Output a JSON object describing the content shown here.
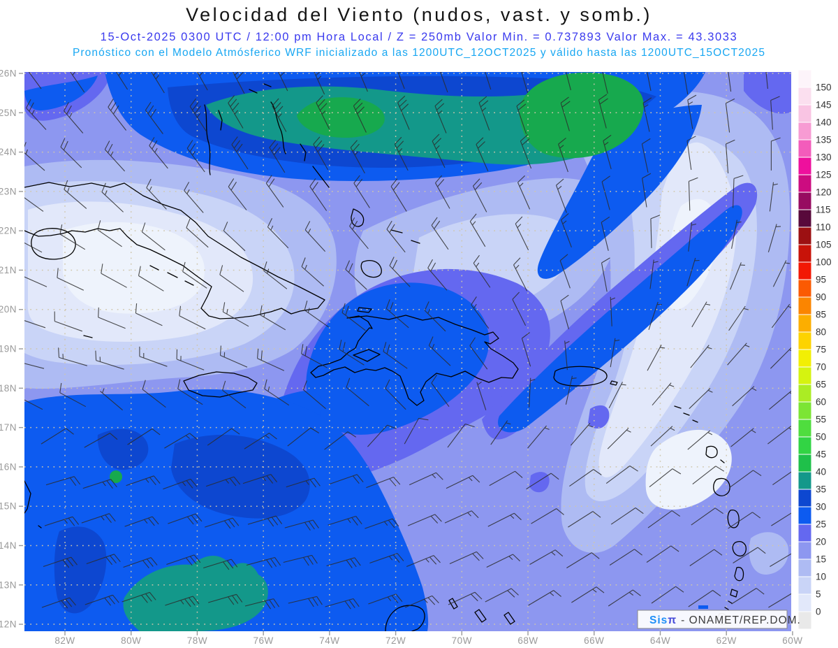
{
  "header": {
    "title": "Velocidad del Viento (nudos, vast. y somb.)",
    "datetime_line": "15-Oct-2025  0300 UTC / 12:00 pm Hora Local / Z = 250mb   Valor Min. = 0.737893   Valor Max. = 43.3033",
    "model_line": "Pronóstico con el Modelo Atmósferico WRF inicializado a las 1200UTC_12OCT2025 y válido hasta las  1200UTC_15OCT2025"
  },
  "colors": {
    "title": "#141414",
    "datetime": "#3a3aee",
    "model": "#18a7f2",
    "axis_label": "#999999",
    "grid_dots": "#cfc6ab",
    "coast": "#000000",
    "barb": "#2b2b2b",
    "colorbar_label": "#333333",
    "band_base": "#8d97f0",
    "band_light1": "#aebbf3",
    "band_light2": "#c9d4f7",
    "band_light3": "#e2e8fa",
    "band_light4": "#eef3fc",
    "band_peri": "#6468f0",
    "band_blue": "#0d5bf0",
    "band_deepblue": "#0d47d0",
    "band_teal": "#13988a",
    "band_green": "#17a94e",
    "attr_brand": "#1f8ff7",
    "attr_symbol": "#4348d8",
    "attr_text": "#3c3c3c"
  },
  "axes": {
    "lat_labels": [
      "26N",
      "25N",
      "24N",
      "23N",
      "22N",
      "21N",
      "20N",
      "19N",
      "18N",
      "17N",
      "16N",
      "15N",
      "14N",
      "13N",
      "12N"
    ],
    "lon_labels": [
      "82W",
      "80W",
      "78W",
      "76W",
      "74W",
      "72W",
      "70W",
      "68W",
      "66W",
      "64W",
      "62W",
      "60W"
    ]
  },
  "colorbar": {
    "labels": [
      "150",
      "145",
      "140",
      "135",
      "130",
      "125",
      "120",
      "115",
      "110",
      "105",
      "100",
      "95",
      "90",
      "85",
      "80",
      "75",
      "70",
      "65",
      "60",
      "55",
      "50",
      "45",
      "40",
      "35",
      "30",
      "25",
      "20",
      "15",
      "10",
      "5",
      "0"
    ],
    "cell_colors_top_to_bottom": [
      "#fdf4fa",
      "#fbdfef",
      "#f9c4e3",
      "#f79bd3",
      "#f35cbb",
      "#ee109d",
      "#cc0c80",
      "#970b61",
      "#58093b",
      "#9c1012",
      "#c81309",
      "#f21804",
      "#fb5a02",
      "#fb8500",
      "#fcae00",
      "#fdd300",
      "#f2ef04",
      "#d5f310",
      "#abec24",
      "#7ce534",
      "#4fdd3e",
      "#32d444",
      "#1fc04a",
      "#13988a",
      "#0d47d0",
      "#0d5bf0",
      "#6468f0",
      "#8d97f0",
      "#aebbf3",
      "#c9d4f7",
      "#e2e8fa",
      "#e9e9e9"
    ]
  },
  "attribution": {
    "brand": "Sis",
    "brand_symbol": "π",
    "text": "- ONAMET/REP.DOM."
  },
  "wind": {
    "cols": 7,
    "rows": 8,
    "grid": [
      [
        [
          325,
          28
        ],
        [
          330,
          38
        ],
        [
          335,
          40
        ],
        [
          340,
          36
        ],
        [
          345,
          30
        ],
        [
          350,
          20
        ],
        [
          355,
          14
        ]
      ],
      [
        [
          310,
          18
        ],
        [
          320,
          30
        ],
        [
          330,
          34
        ],
        [
          335,
          28
        ],
        [
          340,
          18
        ],
        [
          348,
          12
        ],
        [
          0,
          9
        ]
      ],
      [
        [
          300,
          10
        ],
        [
          310,
          8
        ],
        [
          318,
          14
        ],
        [
          325,
          20
        ],
        [
          335,
          16
        ],
        [
          0,
          8
        ],
        [
          15,
          6
        ]
      ],
      [
        [
          290,
          12
        ],
        [
          297,
          8
        ],
        [
          303,
          14
        ],
        [
          312,
          22
        ],
        [
          335,
          12
        ],
        [
          25,
          5
        ],
        [
          35,
          5
        ]
      ],
      [
        [
          282,
          16
        ],
        [
          287,
          14
        ],
        [
          292,
          20
        ],
        [
          302,
          16
        ],
        [
          355,
          7
        ],
        [
          42,
          5
        ],
        [
          50,
          6
        ]
      ],
      [
        [
          75,
          20
        ],
        [
          70,
          24
        ],
        [
          72,
          24
        ],
        [
          65,
          14
        ],
        [
          55,
          8
        ],
        [
          50,
          8
        ],
        [
          55,
          8
        ]
      ],
      [
        [
          72,
          27
        ],
        [
          70,
          30
        ],
        [
          76,
          30
        ],
        [
          68,
          22
        ],
        [
          60,
          12
        ],
        [
          55,
          10
        ],
        [
          60,
          10
        ]
      ],
      [
        [
          70,
          30
        ],
        [
          72,
          34
        ],
        [
          78,
          32
        ],
        [
          66,
          27
        ],
        [
          58,
          15
        ],
        [
          55,
          12
        ],
        [
          60,
          12
        ]
      ]
    ]
  },
  "chart_data": {
    "type": "heatmap",
    "title": "Velocidad del Viento (nudos, vast. y somb.)",
    "variable": "wind speed at 250mb shown as filled contours (knots) with wind barbs",
    "valid_time": "15-Oct-2025 0300 UTC / 12:00 pm Hora Local",
    "level": "250mb",
    "value_min": 0.737893,
    "value_max": 43.3033,
    "model_run": "WRF inicializado a las 1200UTC_12OCT2025, válido hasta las 1200UTC_15OCT2025",
    "x_ticks": [
      "82W",
      "80W",
      "78W",
      "76W",
      "74W",
      "72W",
      "70W",
      "68W",
      "66W",
      "64W",
      "62W",
      "60W"
    ],
    "y_ticks": [
      "26N",
      "25N",
      "24N",
      "23N",
      "22N",
      "21N",
      "20N",
      "19N",
      "18N",
      "17N",
      "16N",
      "15N",
      "14N",
      "13N",
      "12N"
    ],
    "colorbar_levels_kt": [
      0,
      5,
      10,
      15,
      20,
      25,
      30,
      35,
      40,
      45,
      50,
      55,
      60,
      65,
      70,
      75,
      80,
      85,
      90,
      95,
      100,
      105,
      110,
      115,
      120,
      125,
      130,
      135,
      140,
      145,
      150
    ],
    "legend_position": "right",
    "grid": "dotted",
    "region_features": [
      "Cuba",
      "Isla de la Juventud",
      "Jamaica",
      "Hispaniola",
      "Puerto Rico",
      "Bahamas",
      "Islas Turcas",
      "Antillas Menores",
      "Aruba/Curazao/Bonaire",
      "Península de la Guajira"
    ],
    "notes": "Máximos de 35-45 nudos (bandas verde/turquesa) sobre el norte de las Bahamas y al sur de Jamaica; mínimos < 5 nudos (zonas pálidas) al sur de Cuba central y al este de las Antillas."
  }
}
